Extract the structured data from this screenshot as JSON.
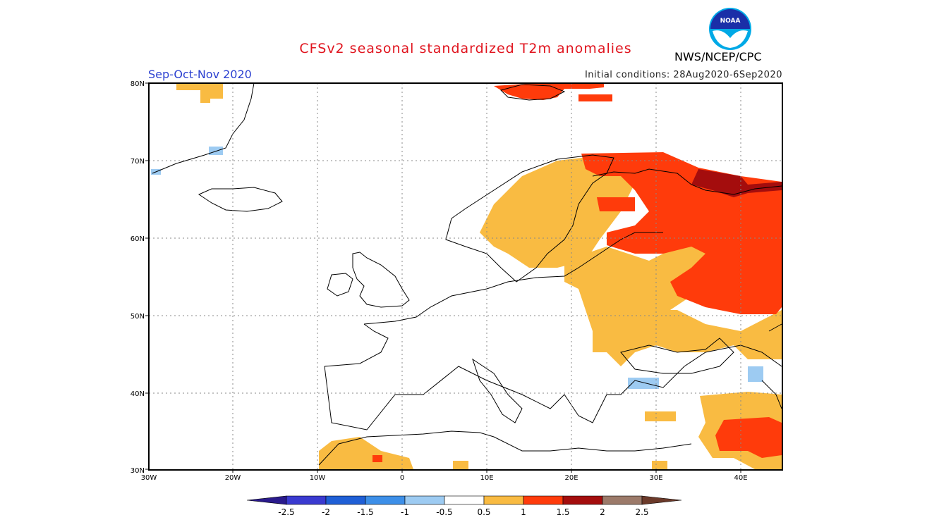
{
  "header": {
    "title": "CFSv2 seasonal standardized T2m anomalies",
    "season": "Sep-Oct-Nov 2020",
    "initial_conditions": "Initial conditions: 28Aug2020-6Sep2020",
    "agency": "NWS/NCEP/CPC",
    "logo_text": "NOAA"
  },
  "map": {
    "lon_labels": [
      "30W",
      "20W",
      "10W",
      "0",
      "10E",
      "20E",
      "30E",
      "40E"
    ],
    "lat_labels": [
      "30N",
      "40N",
      "50N",
      "60N",
      "70N",
      "80N"
    ],
    "lon_range": [
      -30,
      45
    ],
    "lat_range": [
      30,
      80
    ],
    "grid": "dotted"
  },
  "legend": {
    "tick_labels": [
      "-2.5",
      "-2",
      "-1.5",
      "-1",
      "-0.5",
      "0.5",
      "1",
      "1.5",
      "2",
      "2.5"
    ],
    "colors": [
      "#2a1a8c",
      "#3a3ad0",
      "#1f5fd6",
      "#3d8fe8",
      "#9dcbf2",
      "#ffffff",
      "#f9bb42",
      "#ff3b0b",
      "#a40d0d",
      "#9c7a6a",
      "#6b3a2a"
    ]
  },
  "colors": {
    "anom_05_1": "#f9bb42",
    "anom_1_15": "#ff3b0b",
    "anom_15_2": "#a40d0d",
    "anom_neg_05_1": "#9dcbf2"
  }
}
